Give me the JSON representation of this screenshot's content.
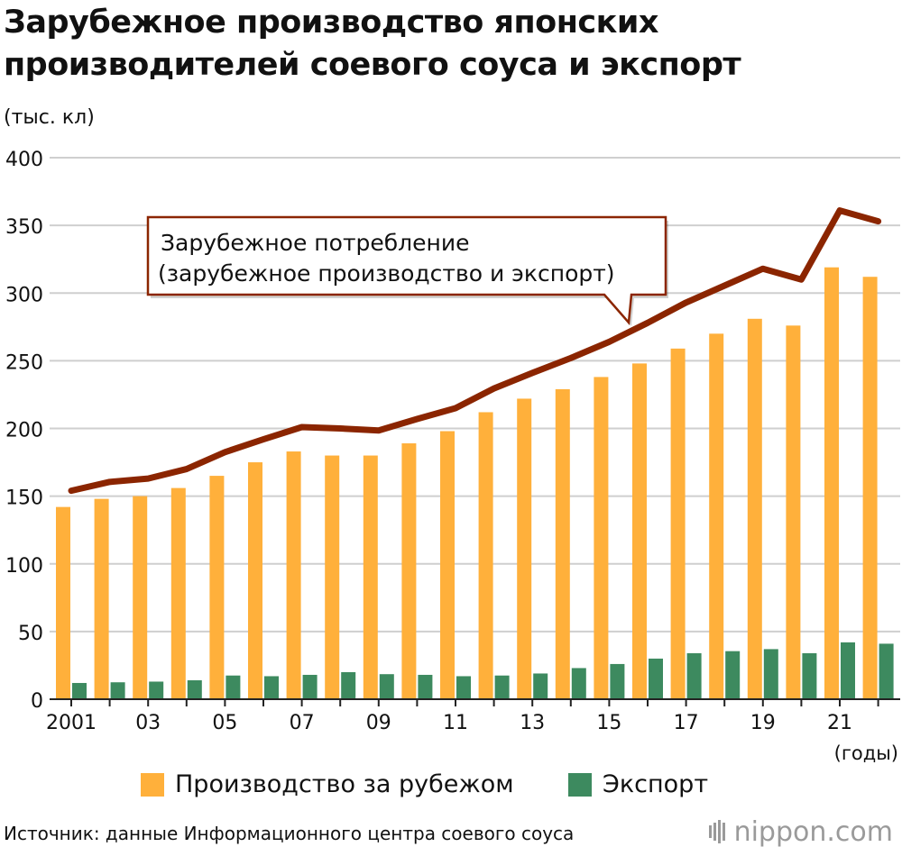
{
  "title_line1": "Зарубежное производство японских",
  "title_line2": "производителей соевого соуса и экспорт",
  "unit_label": "(тыс. кл)",
  "x_unit_label": "(годы)",
  "callout_line1": "Зарубежное потребление",
  "callout_line2": "(зарубежное производство и экспорт)",
  "source": "Источник: данные Информационного центра соевого соуса",
  "logo_text": "nippon.com",
  "colors": {
    "production": "#ffb03b",
    "export": "#3d8a5f",
    "consumption": "#8b2500",
    "callout_border": "#8b2500"
  },
  "chart_data": {
    "type": "bar",
    "title": "Зарубежное производство японских производителей соевого соуса и экспорт",
    "categories": [
      "2001",
      "2002",
      "2003",
      "2004",
      "2005",
      "2006",
      "2007",
      "2008",
      "2009",
      "2010",
      "2011",
      "2012",
      "2013",
      "2014",
      "2015",
      "2016",
      "2017",
      "2018",
      "2019",
      "2020",
      "2021",
      "2022"
    ],
    "tick_labels": [
      "2001",
      "",
      "03",
      "",
      "05",
      "",
      "07",
      "",
      "09",
      "",
      "11",
      "",
      "13",
      "",
      "15",
      "",
      "17",
      "",
      "19",
      "",
      "21",
      ""
    ],
    "ylim": [
      0,
      400
    ],
    "yticks": [
      0,
      50,
      100,
      150,
      200,
      250,
      300,
      350,
      400
    ],
    "ylabel": "(тыс. кл)",
    "xlabel": "(годы)",
    "grid": true,
    "legend": "bottom",
    "series": [
      {
        "name": "Производство за рубежом",
        "type": "bar",
        "values": [
          142,
          148,
          150,
          156,
          165,
          175,
          183,
          180,
          180,
          189,
          198,
          212,
          222,
          229,
          238,
          248,
          259,
          270,
          281,
          276,
          319,
          312
        ]
      },
      {
        "name": "Экспорт",
        "type": "bar",
        "values": [
          12,
          12.5,
          13,
          14,
          17.5,
          17,
          18,
          20,
          18.5,
          18,
          17,
          17.5,
          19,
          23,
          26,
          30,
          34,
          35.5,
          37,
          34,
          42,
          41
        ]
      },
      {
        "name": "Зарубежное потребление (зарубежное производство и экспорт)",
        "type": "line",
        "values": [
          154,
          160.5,
          163,
          170,
          182.5,
          192,
          201,
          200,
          198.5,
          207,
          215,
          229.5,
          241,
          252,
          264,
          278,
          293,
          305.5,
          318,
          310,
          361,
          353
        ]
      }
    ]
  }
}
